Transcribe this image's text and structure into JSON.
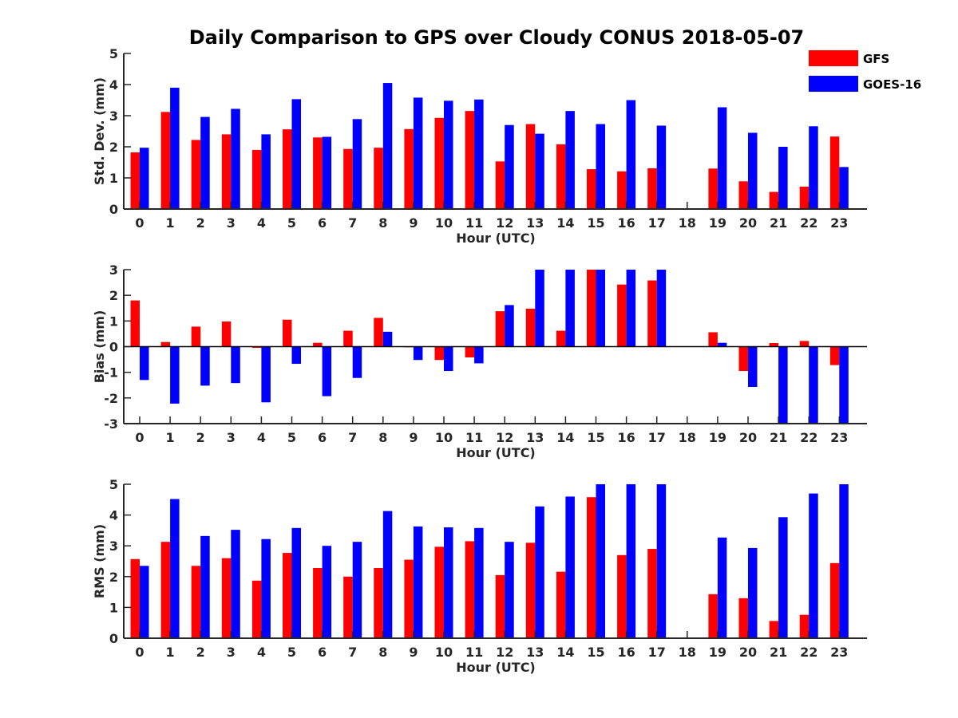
{
  "figure_title": "Daily Comparison to GPS over Cloudy CONUS 2018-05-07",
  "colors": {
    "GFS": "#ff0000",
    "GOES-16": "#0000ff",
    "axis": "#262626"
  },
  "legend": [
    {
      "name": "GFS",
      "color": "#ff0000"
    },
    {
      "name": "GOES-16",
      "color": "#0000ff"
    }
  ],
  "chart_data": [
    {
      "type": "bar",
      "title": "Daily Comparison to GPS over Cloudy CONUS 2018-05-07",
      "xlabel": "Hour (UTC)",
      "ylabel": "Std. Dev. (mm)",
      "categories": [
        "0",
        "1",
        "2",
        "3",
        "4",
        "5",
        "6",
        "7",
        "8",
        "9",
        "10",
        "11",
        "12",
        "13",
        "14",
        "15",
        "16",
        "17",
        "18",
        "19",
        "20",
        "21",
        "22",
        "23"
      ],
      "ylim": [
        0,
        5
      ],
      "yticks": [
        0,
        1,
        2,
        3,
        4,
        5
      ],
      "legend_position": "top-right",
      "series": [
        {
          "name": "GFS",
          "values": [
            1.82,
            3.12,
            2.22,
            2.4,
            1.9,
            2.56,
            2.3,
            1.93,
            1.97,
            2.57,
            2.93,
            3.15,
            1.53,
            2.73,
            2.08,
            1.28,
            1.21,
            1.31,
            null,
            1.3,
            0.89,
            0.55,
            0.72,
            2.33
          ]
        },
        {
          "name": "GOES-16",
          "values": [
            1.97,
            3.9,
            2.96,
            3.22,
            2.4,
            3.53,
            2.32,
            2.89,
            4.05,
            3.58,
            3.48,
            3.52,
            2.7,
            2.42,
            3.15,
            2.73,
            3.5,
            2.68,
            null,
            3.27,
            2.45,
            2.0,
            2.66,
            1.35
          ]
        }
      ]
    },
    {
      "type": "bar",
      "xlabel": "Hour (UTC)",
      "ylabel": "Bias (mm)",
      "categories": [
        "0",
        "1",
        "2",
        "3",
        "4",
        "5",
        "6",
        "7",
        "8",
        "9",
        "10",
        "11",
        "12",
        "13",
        "14",
        "15",
        "16",
        "17",
        "18",
        "19",
        "20",
        "21",
        "22",
        "23"
      ],
      "ylim": [
        -3,
        3
      ],
      "yticks": [
        -3,
        -2,
        -1,
        0,
        1,
        2,
        3
      ],
      "series": [
        {
          "name": "GFS",
          "values": [
            1.8,
            0.18,
            0.78,
            0.98,
            -0.05,
            1.05,
            0.15,
            0.62,
            1.12,
            -0.02,
            -0.52,
            -0.42,
            1.38,
            1.48,
            0.62,
            3.0,
            2.42,
            2.58,
            null,
            0.56,
            -0.95,
            0.14,
            0.22,
            -0.72
          ]
        },
        {
          "name": "GOES-16",
          "values": [
            -1.3,
            -2.22,
            -1.52,
            -1.42,
            -2.17,
            -0.67,
            -1.93,
            -1.22,
            0.58,
            -0.52,
            -0.95,
            -0.65,
            1.62,
            3.0,
            3.0,
            3.0,
            3.0,
            3.0,
            null,
            0.15,
            -1.57,
            -3.0,
            -3.0,
            -3.0
          ]
        }
      ]
    },
    {
      "type": "bar",
      "xlabel": "Hour (UTC)",
      "ylabel": "RMS (mm)",
      "categories": [
        "0",
        "1",
        "2",
        "3",
        "4",
        "5",
        "6",
        "7",
        "8",
        "9",
        "10",
        "11",
        "12",
        "13",
        "14",
        "15",
        "16",
        "17",
        "18",
        "19",
        "20",
        "21",
        "22",
        "23"
      ],
      "ylim": [
        0,
        5
      ],
      "yticks": [
        0,
        1,
        2,
        3,
        4,
        5
      ],
      "series": [
        {
          "name": "GFS",
          "values": [
            2.57,
            3.13,
            2.35,
            2.6,
            1.87,
            2.77,
            2.28,
            2.0,
            2.28,
            2.55,
            2.97,
            3.15,
            2.05,
            3.1,
            2.16,
            4.58,
            2.7,
            2.9,
            null,
            1.43,
            1.3,
            0.56,
            0.76,
            2.44
          ]
        },
        {
          "name": "GOES-16",
          "values": [
            2.35,
            4.52,
            3.32,
            3.52,
            3.22,
            3.58,
            3.0,
            3.13,
            4.13,
            3.63,
            3.6,
            3.58,
            3.13,
            4.28,
            4.6,
            5.0,
            5.0,
            5.0,
            null,
            3.27,
            2.93,
            3.93,
            4.7,
            5.0
          ]
        }
      ]
    }
  ]
}
